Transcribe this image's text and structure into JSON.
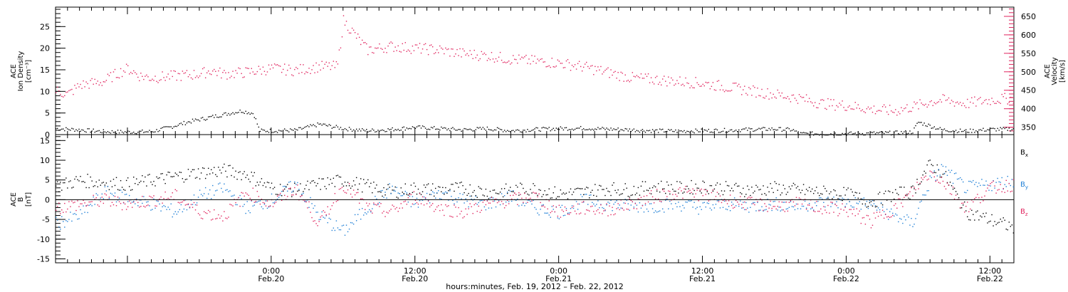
{
  "colors": {
    "density": "#000000",
    "velocity": "#e0245e",
    "bx": "#000000",
    "by": "#1e7fd6",
    "bz": "#e0245e",
    "axes": "#000000"
  },
  "xaxis": {
    "title": "hours:minutes, Feb. 19, 2012 – Feb. 22, 2012",
    "range_hours": [
      0,
      80
    ],
    "ticks": [
      {
        "time": "0:00",
        "date": "Feb.20",
        "hour": 18
      },
      {
        "time": "12:00",
        "date": "Feb.20",
        "hour": 30
      },
      {
        "time": "0:00",
        "date": "Feb.21",
        "hour": 42
      },
      {
        "time": "12:00",
        "date": "Feb.21",
        "hour": 54
      },
      {
        "time": "0:00",
        "date": "Feb.22",
        "hour": 66
      },
      {
        "time": "12:00",
        "date": "Feb.22",
        "hour": 78
      }
    ]
  },
  "panels": {
    "top": {
      "left_label": [
        "ACE",
        "Ion Density",
        "[cm⁻³]"
      ],
      "right_label": [
        "ACE",
        "Velocity",
        "[km/s]"
      ],
      "left_ylim": [
        0,
        29.5
      ],
      "left_ticks": [
        0,
        5,
        10,
        15,
        20,
        25
      ],
      "right_ylim": [
        330,
        675
      ],
      "right_ticks": [
        350,
        400,
        450,
        500,
        550,
        600,
        650
      ]
    },
    "bottom": {
      "left_label": [
        "ACE",
        "B",
        "[nT]"
      ],
      "ylim": [
        -16,
        16.5
      ],
      "ticks": [
        -15,
        -10,
        -5,
        0,
        5,
        10,
        15
      ],
      "legend": [
        {
          "label": "B",
          "sub": "x",
          "color": "#000000"
        },
        {
          "label": "B",
          "sub": "y",
          "color": "#1e7fd6"
        },
        {
          "label": "B",
          "sub": "z",
          "color": "#e0245e"
        }
      ]
    }
  },
  "chart_data": [
    {
      "type": "scatter",
      "title": "",
      "xlabel": "hours:minutes, Feb. 19, 2012 – Feb. 22, 2012",
      "series": [
        {
          "name": "Ion Density",
          "axis": "left",
          "unit": "cm^-3",
          "hours": [
            0,
            2,
            4,
            6,
            8,
            9.5,
            11,
            13,
            15.5,
            16.5,
            17,
            18,
            20,
            22,
            24,
            26,
            28,
            30,
            32,
            34,
            36,
            38,
            40,
            42,
            44,
            46,
            48,
            50,
            52,
            54,
            56,
            58,
            60,
            61.5,
            62,
            64,
            66,
            68,
            70,
            71.5,
            72,
            74,
            76,
            78,
            80
          ],
          "values": [
            1.5,
            1.2,
            0.8,
            0.7,
            0.8,
            1.8,
            3.0,
            4.2,
            5.6,
            5.0,
            1.0,
            1.0,
            1.1,
            2.5,
            1.5,
            1.0,
            1.3,
            1.8,
            1.5,
            1.2,
            1.5,
            1.0,
            1.3,
            1.5,
            1.6,
            1.4,
            1.2,
            1.0,
            0.9,
            1.0,
            1.1,
            1.3,
            1.4,
            1.2,
            0.3,
            0.3,
            0.3,
            0.4,
            0.5,
            0.7,
            3.0,
            1.2,
            0.9,
            1.3,
            1.4
          ]
        },
        {
          "name": "Velocity",
          "axis": "right",
          "unit": "km/s",
          "hours": [
            0,
            1,
            2,
            3,
            4,
            5,
            6,
            7,
            8,
            10,
            12,
            13,
            14,
            16,
            18,
            20,
            22,
            23.5,
            24,
            26,
            28,
            30,
            32,
            34,
            36,
            38,
            40,
            42,
            44,
            46,
            48,
            50,
            52,
            54,
            56,
            58,
            60,
            62,
            64,
            66,
            68,
            70,
            72,
            73,
            74,
            76,
            78,
            80
          ],
          "values": [
            450,
            440,
            465,
            470,
            475,
            495,
            510,
            490,
            485,
            490,
            495,
            505,
            495,
            500,
            510,
            505,
            515,
            515,
            640,
            560,
            570,
            565,
            560,
            550,
            545,
            535,
            530,
            525,
            515,
            500,
            485,
            480,
            475,
            470,
            460,
            450,
            440,
            430,
            415,
            410,
            400,
            395,
            410,
            420,
            425,
            415,
            425,
            430
          ]
        }
      ]
    },
    {
      "type": "scatter",
      "title": "",
      "ylabel": "B [nT]",
      "series": [
        {
          "name": "Bx",
          "hours": [
            0,
            2,
            4,
            6,
            8,
            10,
            12,
            14,
            16,
            18,
            20,
            22,
            24,
            26,
            28,
            30,
            32,
            34,
            36,
            38,
            40,
            42,
            44,
            46,
            48,
            50,
            52,
            54,
            56,
            58,
            60,
            62,
            64,
            66,
            68,
            70,
            71.5,
            72,
            73,
            74,
            76,
            78,
            80
          ],
          "values": [
            3.5,
            5.0,
            4.5,
            4.0,
            5.0,
            6.0,
            7.0,
            7.5,
            6.5,
            3.0,
            2.5,
            4.0,
            5.0,
            3.5,
            2.0,
            3.0,
            2.5,
            3.0,
            2.0,
            2.5,
            3.0,
            1.5,
            2.0,
            3.0,
            2.5,
            3.5,
            3.0,
            3.5,
            3.0,
            2.5,
            3.0,
            2.5,
            2.0,
            1.5,
            -0.5,
            1.5,
            2.0,
            5.0,
            9.0,
            7.0,
            -3.0,
            -5.0,
            -7.0
          ]
        },
        {
          "name": "By",
          "hours": [
            0,
            2,
            4,
            6,
            8,
            10,
            12,
            14,
            16,
            18,
            20,
            22,
            24,
            26,
            28,
            30,
            32,
            34,
            36,
            38,
            40,
            42,
            44,
            46,
            48,
            50,
            52,
            54,
            56,
            58,
            60,
            62,
            64,
            66,
            68,
            70,
            71.5,
            72,
            73,
            74,
            76,
            78,
            80
          ],
          "values": [
            -6.0,
            -4.0,
            2.0,
            0.5,
            -1.0,
            -3.0,
            1.0,
            3.0,
            -2.0,
            0.0,
            4.0,
            -4.0,
            -8.0,
            -2.0,
            3.0,
            -1.0,
            2.0,
            0.0,
            -1.0,
            1.0,
            -2.0,
            -3.0,
            0.0,
            -1.0,
            -1.5,
            -1.5,
            -1.0,
            -2.0,
            -1.0,
            -1.5,
            -1.0,
            -1.5,
            -0.5,
            -0.5,
            -1.0,
            -4.0,
            -6.0,
            -2.0,
            5.0,
            8.0,
            3.0,
            4.0,
            5.0
          ]
        },
        {
          "name": "Bz",
          "hours": [
            0,
            2,
            4,
            6,
            8,
            10,
            12,
            14,
            16,
            18,
            20,
            22,
            24,
            26,
            28,
            30,
            32,
            34,
            36,
            38,
            40,
            42,
            44,
            46,
            48,
            50,
            52,
            54,
            56,
            58,
            60,
            62,
            64,
            66,
            68,
            70,
            71.5,
            72,
            73,
            74,
            76,
            78,
            80
          ],
          "values": [
            -2.0,
            -1.0,
            0.0,
            -1.0,
            0.0,
            1.0,
            -3.0,
            -4.0,
            2.0,
            -1.0,
            3.0,
            -6.0,
            4.0,
            -2.0,
            -3.0,
            1.0,
            -2.0,
            -3.0,
            -1.0,
            0.0,
            1.0,
            -3.0,
            -2.0,
            -2.5,
            -1.0,
            1.0,
            2.0,
            1.5,
            0.0,
            -1.0,
            -1.5,
            -1.0,
            -2.0,
            -2.5,
            -5.5,
            -2.0,
            2.0,
            4.0,
            7.0,
            5.0,
            -2.0,
            3.0,
            4.0
          ]
        }
      ]
    }
  ]
}
